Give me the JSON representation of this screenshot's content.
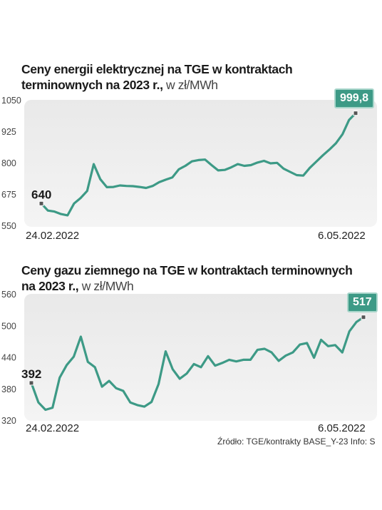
{
  "chart_data": [
    {
      "type": "line",
      "title": "Ceny energii elektrycznej na TGE w kontraktach terminownych na 2023 r.,",
      "unit": "w zł/MWh",
      "ylim": [
        550,
        1050
      ],
      "yticks": [
        "1050",
        "925",
        "800",
        "675",
        "550"
      ],
      "x_start_label": "24.02.2022",
      "x_end_label": "6.05.2022",
      "start_value_label": "640",
      "end_value_label": "999,8",
      "color": "#3d9a86",
      "values": [
        640,
        612,
        608,
        598,
        593,
        640,
        662,
        690,
        797,
        737,
        705,
        706,
        712,
        710,
        709,
        706,
        702,
        710,
        725,
        735,
        744,
        776,
        790,
        808,
        813,
        815,
        793,
        772,
        774,
        784,
        797,
        790,
        793,
        803,
        810,
        800,
        802,
        779,
        766,
        753,
        751,
        782,
        807,
        832,
        855,
        880,
        916,
        973,
        999.8
      ]
    },
    {
      "type": "line",
      "title": "Ceny gazu ziemnego na TGE w kontraktach terminownych na 2023 r.,",
      "unit": "w zł/MWh",
      "ylim": [
        320,
        560
      ],
      "yticks": [
        "560",
        "500",
        "440",
        "380",
        "320"
      ],
      "x_start_label": "24.02.2022",
      "x_end_label": "6.05.2022",
      "start_value_label": "392",
      "end_value_label": "517",
      "color": "#3d9a86",
      "values": [
        392,
        355,
        341,
        345,
        402,
        426,
        442,
        480,
        432,
        422,
        385,
        396,
        382,
        377,
        355,
        350,
        347,
        356,
        390,
        452,
        418,
        400,
        410,
        428,
        422,
        443,
        425,
        430,
        436,
        433,
        436,
        436,
        455,
        457,
        450,
        434,
        444,
        450,
        465,
        468,
        440,
        474,
        462,
        464,
        450,
        490,
        508,
        517
      ]
    }
  ],
  "source_text": "Źródło: TGE/kontrakty BASE_Y-23  Info: S"
}
